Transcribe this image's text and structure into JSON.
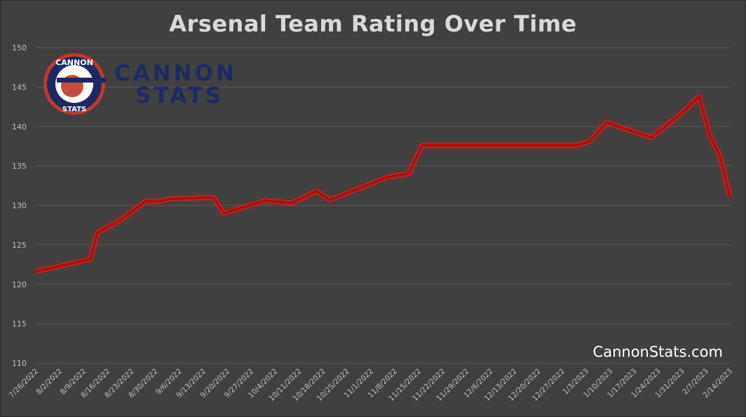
{
  "header": {
    "title": "Arsenal Team Rating Over Time"
  },
  "watermark": "CannonStats.com",
  "logo": {
    "badge_top": "CANNON",
    "badge_bottom": "STATS",
    "word_line1": "CANNON",
    "word_line2": "STATS"
  },
  "colors": {
    "background": "#404040",
    "line": "#c00000",
    "glow": "#ff2020",
    "grid": "#595959",
    "axis_text": "#bfbfbf",
    "logo_navy": "#1c2a63",
    "logo_red": "#c0392b"
  },
  "chart_data": {
    "type": "line",
    "title": "Arsenal Team Rating Over Time",
    "xlabel": "",
    "ylabel": "",
    "ylim": [
      110,
      150
    ],
    "yticks": [
      110,
      115,
      120,
      125,
      130,
      135,
      140,
      145,
      150
    ],
    "grid": true,
    "legend": "none",
    "categories": [
      "7/26/2022",
      "8/2/2022",
      "8/9/2022",
      "8/16/2022",
      "8/23/2022",
      "8/30/2022",
      "9/6/2022",
      "9/13/2022",
      "9/20/2022",
      "9/27/2022",
      "10/4/2022",
      "10/11/2022",
      "10/18/2022",
      "10/25/2022",
      "11/1/2022",
      "11/8/2022",
      "11/15/2022",
      "11/22/2022",
      "11/29/2022",
      "12/6/2022",
      "12/13/2022",
      "12/20/2022",
      "12/27/2022",
      "1/3/2023",
      "1/10/2023",
      "1/17/2023",
      "1/24/2023",
      "1/31/2023",
      "2/7/2023",
      "2/14/2023"
    ],
    "series": [
      {
        "points": [
          {
            "x": "7/26/2022",
            "y": 121.6
          },
          {
            "x": "8/11/2022",
            "y": 123.2
          },
          {
            "x": "8/13/2022",
            "y": 126.5
          },
          {
            "x": "8/20/2022",
            "y": 128.2
          },
          {
            "x": "8/27/2022",
            "y": 130.5
          },
          {
            "x": "8/31/2022",
            "y": 130.5
          },
          {
            "x": "9/3/2022",
            "y": 130.8
          },
          {
            "x": "9/16/2022",
            "y": 131.0
          },
          {
            "x": "9/19/2022",
            "y": 129.0
          },
          {
            "x": "10/1/2022",
            "y": 130.6
          },
          {
            "x": "10/9/2022",
            "y": 130.3
          },
          {
            "x": "10/16/2022",
            "y": 131.8
          },
          {
            "x": "10/20/2022",
            "y": 130.7
          },
          {
            "x": "11/6/2022",
            "y": 133.6
          },
          {
            "x": "11/12/2022",
            "y": 134.0
          },
          {
            "x": "11/16/2022",
            "y": 137.6
          },
          {
            "x": "12/31/2022",
            "y": 137.6
          },
          {
            "x": "1/4/2023",
            "y": 138.1
          },
          {
            "x": "1/9/2023",
            "y": 140.5
          },
          {
            "x": "1/22/2023",
            "y": 138.6
          },
          {
            "x": "1/31/2023",
            "y": 141.7
          },
          {
            "x": "2/5/2023",
            "y": 143.8
          },
          {
            "x": "2/8/2023",
            "y": 139.0
          },
          {
            "x": "2/11/2023",
            "y": 136.3
          },
          {
            "x": "2/14/2023",
            "y": 131.2
          }
        ]
      }
    ]
  }
}
